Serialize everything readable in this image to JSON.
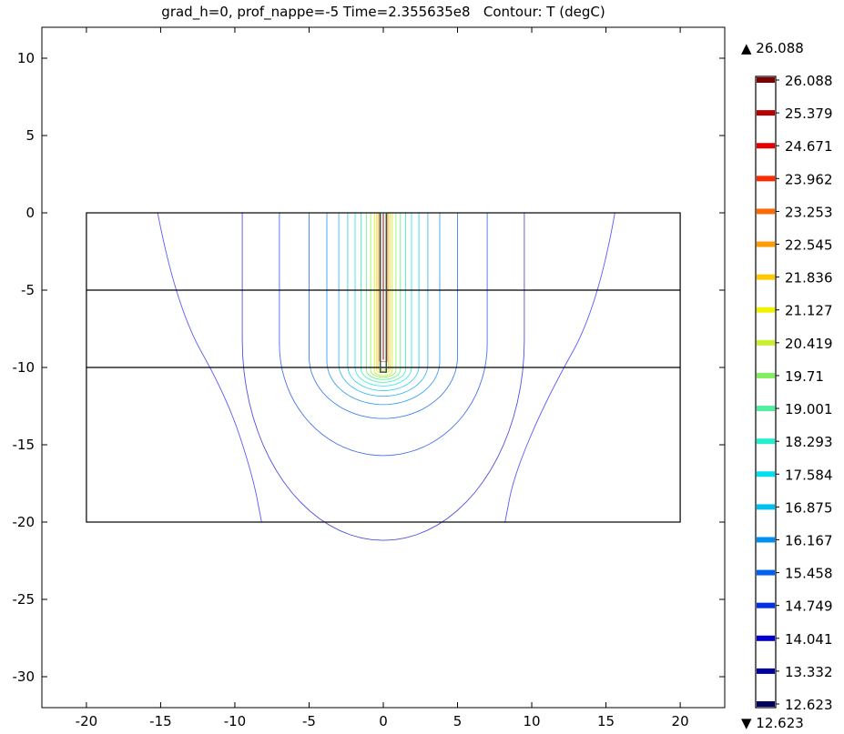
{
  "chart_data": {
    "type": "contour",
    "title": "grad_h=0, prof_nappe=-5 Time=2.355635e8   Contour: T (degC)",
    "xlabel": "",
    "ylabel": "",
    "xlim": [
      -23,
      23
    ],
    "ylim": [
      -32,
      12
    ],
    "x_ticks": [
      -20,
      -15,
      -10,
      -5,
      0,
      5,
      10,
      15,
      20
    ],
    "y_ticks": [
      10,
      5,
      0,
      -5,
      -10,
      -15,
      -20,
      -25,
      -30
    ],
    "grid": false,
    "domain": {
      "x": [
        -20,
        20
      ],
      "y": [
        -20,
        0
      ]
    },
    "layer_boundaries_y": [
      -5,
      -10
    ],
    "borehole": {
      "x": [
        -0.2,
        0.2
      ],
      "y": [
        -10.3,
        0
      ]
    },
    "colorbar": {
      "max_label": "26.088",
      "min_label": "12.623",
      "levels": [
        "26.088",
        "25.379",
        "24.671",
        "23.962",
        "23.253",
        "22.545",
        "21.836",
        "21.127",
        "20.419",
        "19.71",
        "19.001",
        "18.293",
        "17.584",
        "16.875",
        "16.167",
        "15.458",
        "14.749",
        "14.041",
        "13.332",
        "12.623"
      ],
      "colors": [
        "#800000",
        "#b80000",
        "#e80000",
        "#ff2a00",
        "#ff6a00",
        "#ff9a00",
        "#ffc800",
        "#f2f200",
        "#c8f030",
        "#80f060",
        "#50f0a0",
        "#20f0d0",
        "#00e0f0",
        "#00c0f0",
        "#0090f0",
        "#0060f0",
        "#0030e8",
        "#0000d0",
        "#0000a0",
        "#000060"
      ]
    },
    "contours": [
      {
        "level": "12.623",
        "color": "#5a5aff",
        "points": [
          [
            -15.2,
            0
          ],
          [
            -14,
            -6
          ],
          [
            -10.5,
            -12
          ],
          [
            -8.8,
            -17
          ],
          [
            -8.2,
            -20
          ]
        ]
      },
      {
        "level": "12.623",
        "color": "#5a5aff",
        "points": [
          [
            15.6,
            0
          ],
          [
            14.5,
            -6
          ],
          [
            11,
            -12
          ],
          [
            8.8,
            -17
          ],
          [
            8.2,
            -20
          ]
        ]
      },
      {
        "level": "13.332",
        "color": "#5050e0",
        "semi": [
          9.5,
          -10.3,
          15
        ]
      },
      {
        "level": "14.041",
        "color": "#4a70f0",
        "semi": [
          7,
          -10.3,
          9
        ]
      },
      {
        "level": "14.749",
        "color": "#4080f0",
        "semi": [
          5,
          -10.3,
          5
        ]
      },
      {
        "level": "15.458",
        "color": "#40a0f0",
        "semi": [
          3.8,
          -10.3,
          3.5
        ]
      },
      {
        "level": "16.167",
        "color": "#40b8f0",
        "semi": [
          3.0,
          -10.3,
          2.6
        ]
      },
      {
        "level": "16.875",
        "color": "#40d0f0",
        "semi": [
          2.4,
          -10.3,
          2.0
        ]
      },
      {
        "level": "17.584",
        "color": "#40e8e8",
        "semi": [
          1.9,
          -10.3,
          1.5
        ]
      },
      {
        "level": "18.293",
        "color": "#50f0c0",
        "semi": [
          1.5,
          -10.3,
          1.1
        ]
      },
      {
        "level": "19.001",
        "color": "#70f090",
        "semi": [
          1.15,
          -10.3,
          0.8
        ]
      },
      {
        "level": "19.71",
        "color": "#a0f060",
        "semi": [
          0.85,
          -10.3,
          0.55
        ]
      },
      {
        "level": "20.419",
        "color": "#d0f040",
        "semi": [
          0.6,
          -10.3,
          0.38
        ]
      },
      {
        "level": "21.127",
        "color": "#f8e030",
        "semi": [
          0.45,
          -10.2,
          0.22
        ]
      },
      {
        "level": "21.836",
        "color": "#ffc040",
        "semi": [
          0.35,
          -10.1,
          0.12
        ]
      },
      {
        "level": "23.253",
        "color": "#ff7040",
        "semi": [
          0.26,
          -9.6,
          0.05
        ]
      }
    ]
  }
}
